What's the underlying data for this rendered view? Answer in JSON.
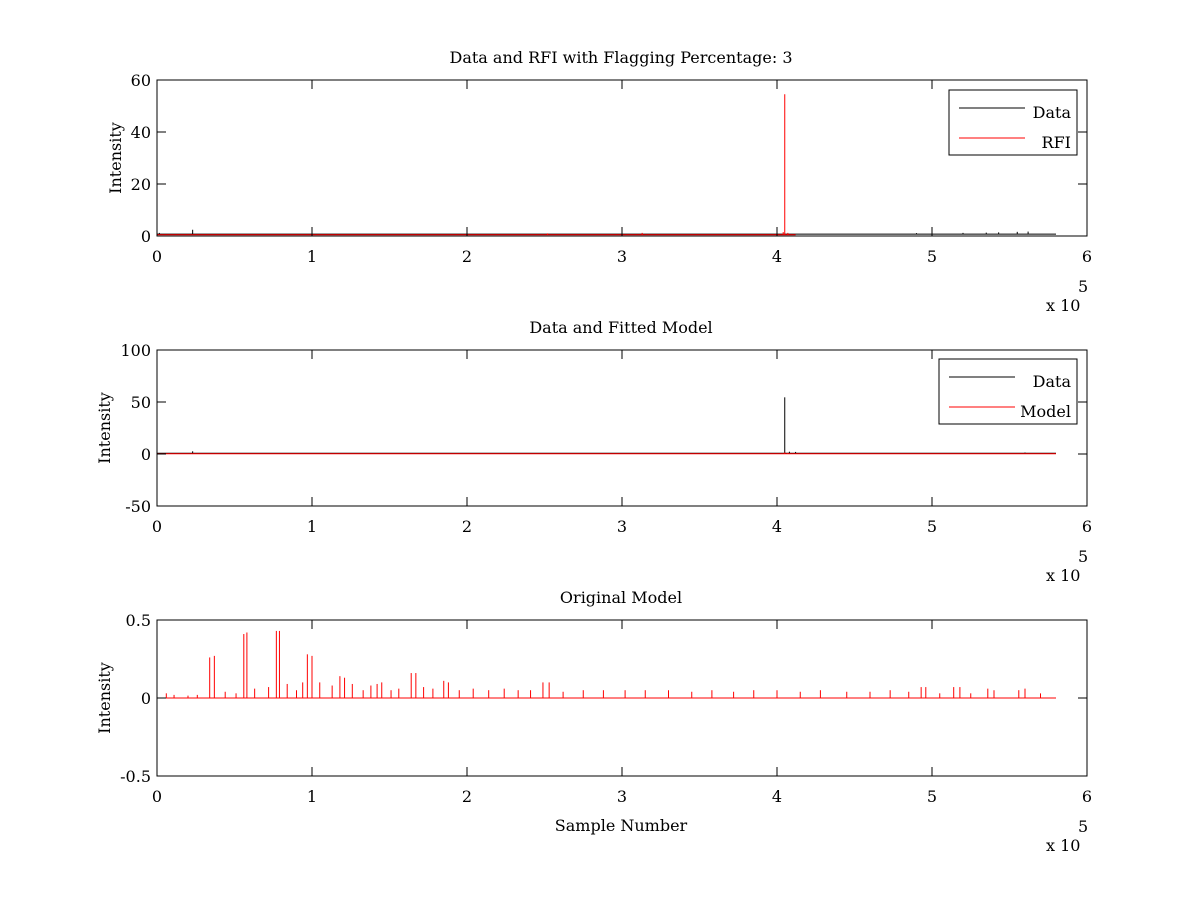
{
  "chart_data": [
    {
      "type": "line",
      "title": "Data and RFI with Flagging Percentage: 3",
      "xlabel": "",
      "ylabel": "Intensity",
      "xlim": [
        0,
        600000
      ],
      "ylim": [
        0,
        60
      ],
      "x_ticks": [
        0,
        1,
        2,
        3,
        4,
        5,
        6
      ],
      "y_ticks": [
        0,
        20,
        40,
        60
      ],
      "x_multiplier": "x 10",
      "x_multiplier_exponent": "5",
      "grid": false,
      "legend": {
        "position": "top-right",
        "entries": [
          {
            "label": "Data",
            "color": "#000000"
          },
          {
            "label": "RFI",
            "color": "#ff0000"
          }
        ]
      },
      "series": [
        {
          "name": "Data",
          "color": "#000000",
          "baseline": 0.7,
          "spikes": [
            {
              "x": 1500,
              "y": 1.2
            },
            {
              "x": 23000,
              "y": 2.4
            },
            {
              "x": 490000,
              "y": 1.1
            },
            {
              "x": 520000,
              "y": 1.2
            },
            {
              "x": 535000,
              "y": 1.3
            },
            {
              "x": 543000,
              "y": 1.4
            },
            {
              "x": 555000,
              "y": 1.6
            },
            {
              "x": 562000,
              "y": 1.7
            }
          ],
          "x_end": 580000
        },
        {
          "name": "RFI",
          "color": "#ff0000",
          "baseline": 0.5,
          "spikes": [
            {
              "x": 252000,
              "y": 1.0
            },
            {
              "x": 313000,
              "y": 1.2
            },
            {
              "x": 404000,
              "y": 1.5
            },
            {
              "x": 405000,
              "y": 54.5
            },
            {
              "x": 407000,
              "y": 1.2
            }
          ],
          "x_end": 412000
        }
      ]
    },
    {
      "type": "line",
      "title": "Data and Fitted Model",
      "xlabel": "",
      "ylabel": "Intensity",
      "xlim": [
        0,
        600000
      ],
      "ylim": [
        -50,
        100
      ],
      "x_ticks": [
        0,
        1,
        2,
        3,
        4,
        5,
        6
      ],
      "y_ticks": [
        -50,
        0,
        50,
        100
      ],
      "x_multiplier": "x 10",
      "x_multiplier_exponent": "5",
      "grid": false,
      "legend": {
        "position": "top-right",
        "entries": [
          {
            "label": "Data",
            "color": "#000000"
          },
          {
            "label": "Model",
            "color": "#ff0000"
          }
        ]
      },
      "series": [
        {
          "name": "Data",
          "color": "#000000",
          "baseline": 0.7,
          "spikes": [
            {
              "x": 23000,
              "y": 2.6
            },
            {
              "x": 405000,
              "y": 54.5
            },
            {
              "x": 408000,
              "y": 2.2
            },
            {
              "x": 412000,
              "y": 2.0
            },
            {
              "x": 560000,
              "y": 1.5
            }
          ],
          "x_end": 580000
        },
        {
          "name": "Model",
          "color": "#ff0000",
          "baseline": 0.2,
          "spikes": [
            {
              "x": 23000,
              "y": 0.5
            },
            {
              "x": 405000,
              "y": 1.5
            },
            {
              "x": 407000,
              "y": 1.0
            }
          ],
          "x_end": 580000
        }
      ]
    },
    {
      "type": "line",
      "title": "Original Model",
      "xlabel": "Sample Number",
      "ylabel": "Intensity",
      "xlim": [
        0,
        600000
      ],
      "ylim": [
        -0.5,
        0.5
      ],
      "x_ticks": [
        0,
        1,
        2,
        3,
        4,
        5,
        6
      ],
      "y_ticks": [
        -0.5,
        0,
        0.5
      ],
      "x_multiplier": "x 10",
      "x_multiplier_exponent": "5",
      "grid": false,
      "series": [
        {
          "name": "",
          "color": "#ff0000",
          "baseline": 0.0,
          "spikes": [
            {
              "x": 6000,
              "y": 0.03
            },
            {
              "x": 11000,
              "y": 0.02
            },
            {
              "x": 20000,
              "y": 0.015
            },
            {
              "x": 26000,
              "y": 0.02
            },
            {
              "x": 34000,
              "y": 0.26
            },
            {
              "x": 37000,
              "y": 0.27
            },
            {
              "x": 44000,
              "y": 0.04
            },
            {
              "x": 51000,
              "y": 0.03
            },
            {
              "x": 56000,
              "y": 0.41
            },
            {
              "x": 58000,
              "y": 0.42
            },
            {
              "x": 63000,
              "y": 0.06
            },
            {
              "x": 72000,
              "y": 0.07
            },
            {
              "x": 77000,
              "y": 0.43
            },
            {
              "x": 79000,
              "y": 0.43
            },
            {
              "x": 84000,
              "y": 0.09
            },
            {
              "x": 90000,
              "y": 0.05
            },
            {
              "x": 94000,
              "y": 0.1
            },
            {
              "x": 97000,
              "y": 0.28
            },
            {
              "x": 100000,
              "y": 0.27
            },
            {
              "x": 105000,
              "y": 0.1
            },
            {
              "x": 113000,
              "y": 0.08
            },
            {
              "x": 118000,
              "y": 0.14
            },
            {
              "x": 121000,
              "y": 0.13
            },
            {
              "x": 126000,
              "y": 0.09
            },
            {
              "x": 133000,
              "y": 0.05
            },
            {
              "x": 138000,
              "y": 0.08
            },
            {
              "x": 142000,
              "y": 0.09
            },
            {
              "x": 145000,
              "y": 0.1
            },
            {
              "x": 151000,
              "y": 0.05
            },
            {
              "x": 156000,
              "y": 0.06
            },
            {
              "x": 164000,
              "y": 0.16
            },
            {
              "x": 167000,
              "y": 0.16
            },
            {
              "x": 172000,
              "y": 0.07
            },
            {
              "x": 178000,
              "y": 0.06
            },
            {
              "x": 185000,
              "y": 0.11
            },
            {
              "x": 188000,
              "y": 0.1
            },
            {
              "x": 195000,
              "y": 0.05
            },
            {
              "x": 204000,
              "y": 0.06
            },
            {
              "x": 214000,
              "y": 0.05
            },
            {
              "x": 224000,
              "y": 0.06
            },
            {
              "x": 233000,
              "y": 0.05
            },
            {
              "x": 241000,
              "y": 0.05
            },
            {
              "x": 249000,
              "y": 0.1
            },
            {
              "x": 253000,
              "y": 0.1
            },
            {
              "x": 262000,
              "y": 0.04
            },
            {
              "x": 275000,
              "y": 0.05
            },
            {
              "x": 288000,
              "y": 0.05
            },
            {
              "x": 302000,
              "y": 0.05
            },
            {
              "x": 315000,
              "y": 0.05
            },
            {
              "x": 330000,
              "y": 0.05
            },
            {
              "x": 345000,
              "y": 0.04
            },
            {
              "x": 358000,
              "y": 0.05
            },
            {
              "x": 372000,
              "y": 0.04
            },
            {
              "x": 385000,
              "y": 0.05
            },
            {
              "x": 400000,
              "y": 0.05
            },
            {
              "x": 415000,
              "y": 0.04
            },
            {
              "x": 428000,
              "y": 0.05
            },
            {
              "x": 445000,
              "y": 0.04
            },
            {
              "x": 460000,
              "y": 0.04
            },
            {
              "x": 473000,
              "y": 0.05
            },
            {
              "x": 485000,
              "y": 0.04
            },
            {
              "x": 493000,
              "y": 0.07
            },
            {
              "x": 496000,
              "y": 0.07
            },
            {
              "x": 505000,
              "y": 0.03
            },
            {
              "x": 514000,
              "y": 0.07
            },
            {
              "x": 518000,
              "y": 0.07
            },
            {
              "x": 525000,
              "y": 0.03
            },
            {
              "x": 536000,
              "y": 0.06
            },
            {
              "x": 540000,
              "y": 0.05
            },
            {
              "x": 556000,
              "y": 0.05
            },
            {
              "x": 560000,
              "y": 0.06
            },
            {
              "x": 570000,
              "y": 0.03
            }
          ],
          "x_end": 580000
        }
      ]
    }
  ]
}
